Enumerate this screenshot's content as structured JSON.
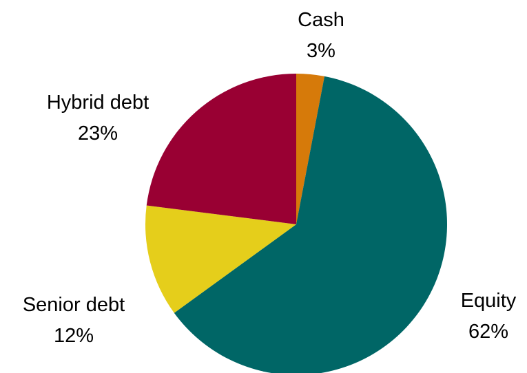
{
  "chart_data": {
    "type": "pie",
    "start": "top",
    "direction": "clockwise",
    "slices": [
      {
        "label": "Cash",
        "value": 3,
        "value_label": "3%",
        "color": "#D67A0A"
      },
      {
        "label": "Equity",
        "value": 62,
        "value_label": "62%",
        "color": "#006666"
      },
      {
        "label": "Senior debt",
        "value": 12,
        "value_label": "12%",
        "color": "#E5CE1B"
      },
      {
        "label": "Hybrid debt",
        "value": 23,
        "value_label": "23%",
        "color": "#990033"
      }
    ]
  }
}
